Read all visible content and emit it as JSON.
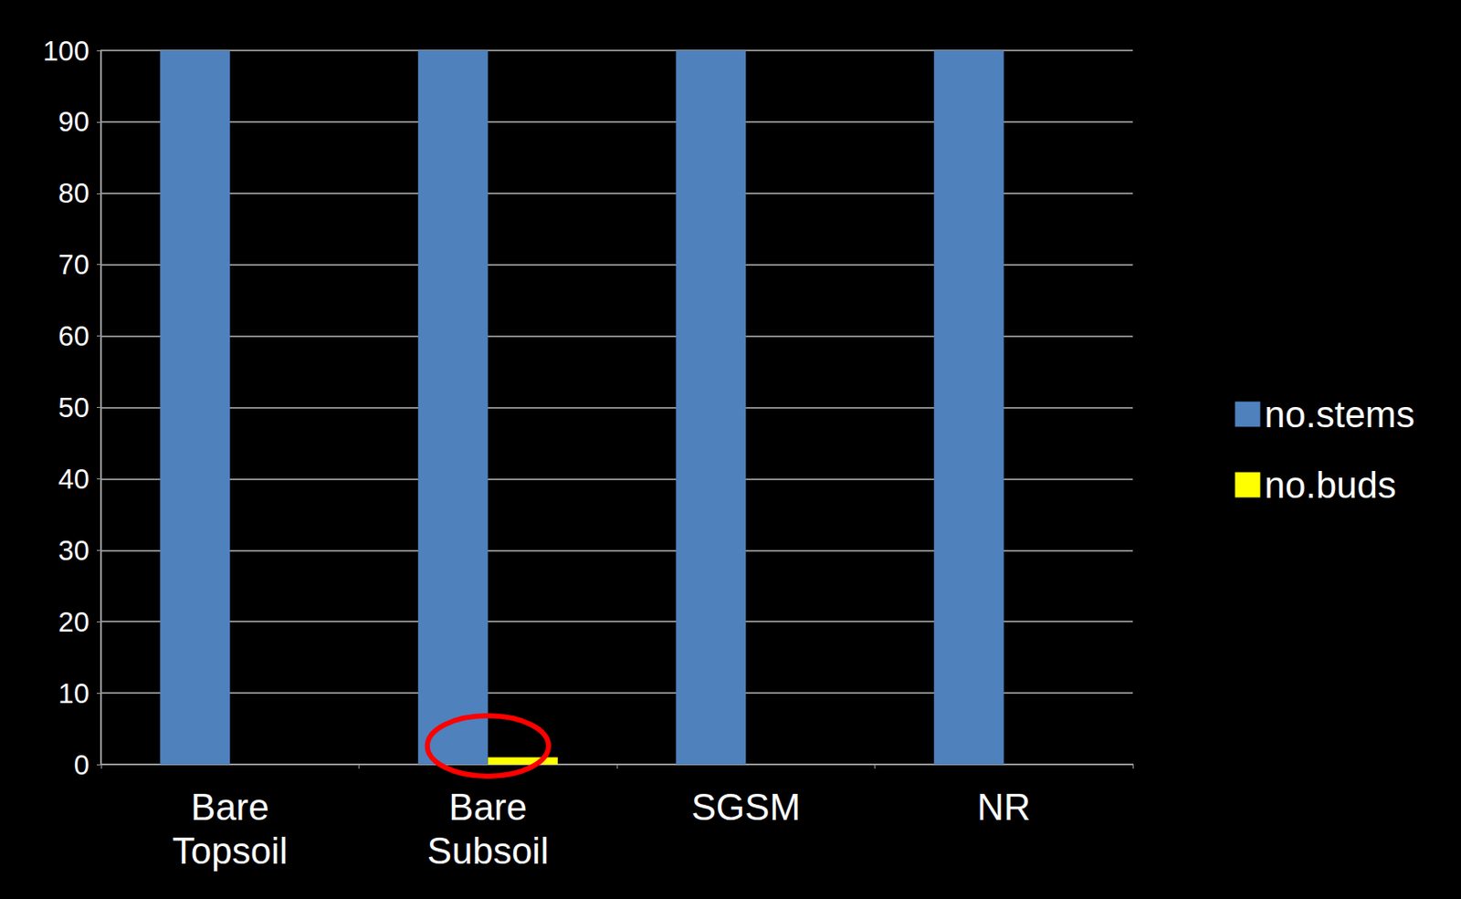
{
  "chart_data": {
    "type": "bar",
    "categories": [
      "Bare Topsoil",
      "Bare Subsoil",
      "SGSM",
      "NR"
    ],
    "series": [
      {
        "name": "no.stems",
        "color": "#4f81bd",
        "values": [
          100,
          100,
          100,
          100
        ]
      },
      {
        "name": "no.buds",
        "color": "#ffff00",
        "values": [
          0,
          1,
          0,
          0
        ]
      }
    ],
    "ylim": [
      0,
      100
    ],
    "yticks": [
      0,
      10,
      20,
      30,
      40,
      50,
      60,
      70,
      80,
      90,
      100
    ],
    "grid": true,
    "legend": "right"
  }
}
